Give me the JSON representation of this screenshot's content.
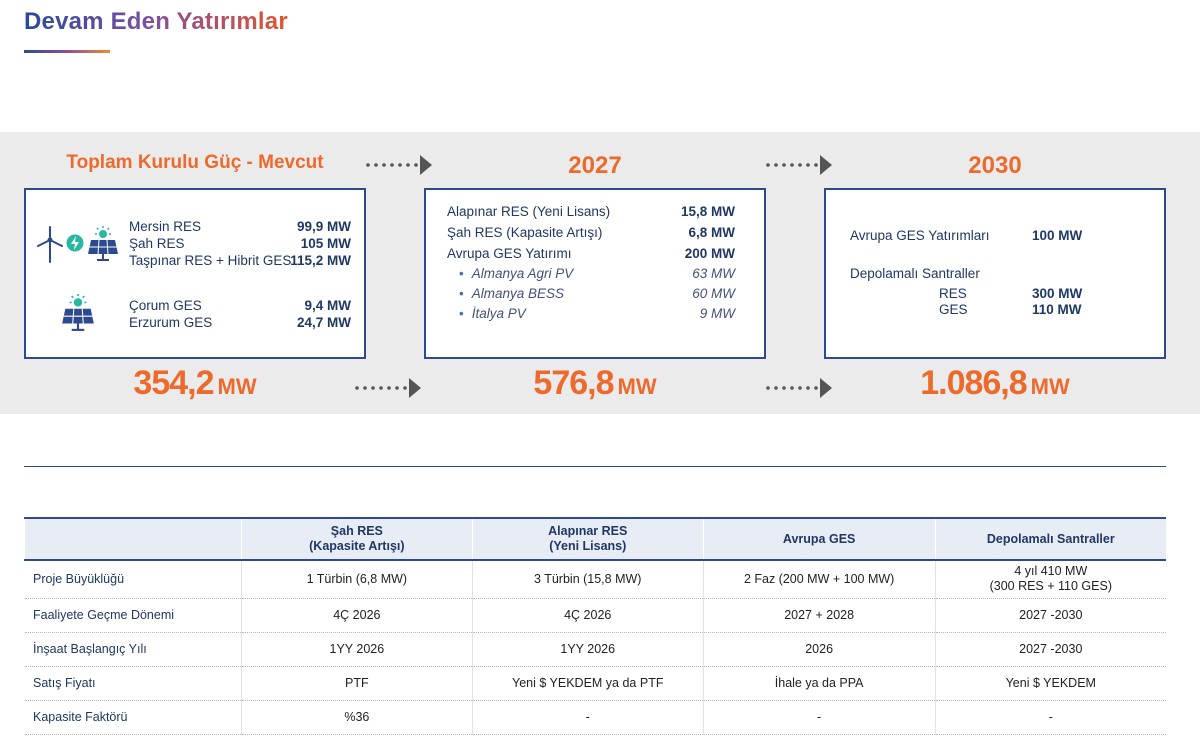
{
  "title": "Devam Eden Yatırımlar",
  "colors": {
    "accent_orange": "#ec6a2c",
    "navy": "#2e4a8f",
    "band_gray": "#ebebeb"
  },
  "columns": [
    {
      "heading": "Toplam Kurulu Güç - Mevcut",
      "icons": [
        "wind-turbine-icon",
        "hybrid-bolt-icon",
        "solar-panel-icon"
      ],
      "items": [
        {
          "label": "Mersin RES",
          "value": "99,9 MW"
        },
        {
          "label": "Şah RES",
          "value": "105 MW"
        },
        {
          "label": "Taşpınar RES + Hibrit GES",
          "value": "115,2 MW"
        },
        {
          "label": "Çorum GES",
          "value": "9,4 MW"
        },
        {
          "label": "Erzurum GES",
          "value": "24,7 MW"
        }
      ],
      "total": "354,2",
      "unit": "MW"
    },
    {
      "heading": "2027",
      "items": [
        {
          "label": "Alapınar RES (Yeni Lisans)",
          "value": "15,8 MW"
        },
        {
          "label": "Şah RES  (Kapasite Artışı)",
          "value": "6,8 MW"
        },
        {
          "label": "Avrupa GES Yatırımı",
          "value": "200 MW"
        },
        {
          "label": "Almanya Agri PV",
          "value": "63 MW"
        },
        {
          "label": "Almanya BESS",
          "value": "60 MW"
        },
        {
          "label": "İtalya PV",
          "value": "9 MW"
        }
      ],
      "total": "576,8",
      "unit": "MW"
    },
    {
      "heading": "2030",
      "items": [
        {
          "label": "Avrupa GES Yatırımları",
          "value": "100 MW"
        },
        {
          "label": "Depolamalı Santraller",
          "value": ""
        },
        {
          "label": "RES",
          "value": "300 MW"
        },
        {
          "label": "GES",
          "value": "110 MW"
        }
      ],
      "total": "1.086,8",
      "unit": "MW"
    }
  ],
  "table": {
    "headers": [
      {
        "line1": "",
        "line2": ""
      },
      {
        "line1": "Şah RES",
        "line2": "(Kapasite Artışı)"
      },
      {
        "line1": "Alapınar RES",
        "line2": "(Yeni Lisans)"
      },
      {
        "line1": "Avrupa GES",
        "line2": ""
      },
      {
        "line1": "Depolamalı Santraller",
        "line2": ""
      }
    ],
    "rows": [
      {
        "label": "Proje Büyüklüğü",
        "cells": [
          "1 Türbin (6,8 MW)",
          "3 Türbin (15,8 MW)",
          "2 Faz (200 MW + 100 MW)",
          "4 yıl 410 MW"
        ],
        "extra": "(300 RES + 110 GES)"
      },
      {
        "label": "Faaliyete Geçme Dönemi",
        "cells": [
          "4Ç 2026",
          "4Ç 2026",
          "2027 + 2028",
          "2027 -2030"
        ]
      },
      {
        "label": "İnşaat Başlangıç Yılı",
        "cells": [
          "1YY 2026",
          "1YY 2026",
          "2026",
          "2027 -2030"
        ]
      },
      {
        "label": "Satış Fiyatı",
        "cells": [
          "PTF",
          "Yeni $ YEKDEM ya da PTF",
          "İhale ya da PPA",
          "Yeni $ YEKDEM"
        ]
      },
      {
        "label": "Kapasite Faktörü",
        "cells": [
          "%36",
          "-",
          "-",
          "-"
        ]
      }
    ]
  }
}
